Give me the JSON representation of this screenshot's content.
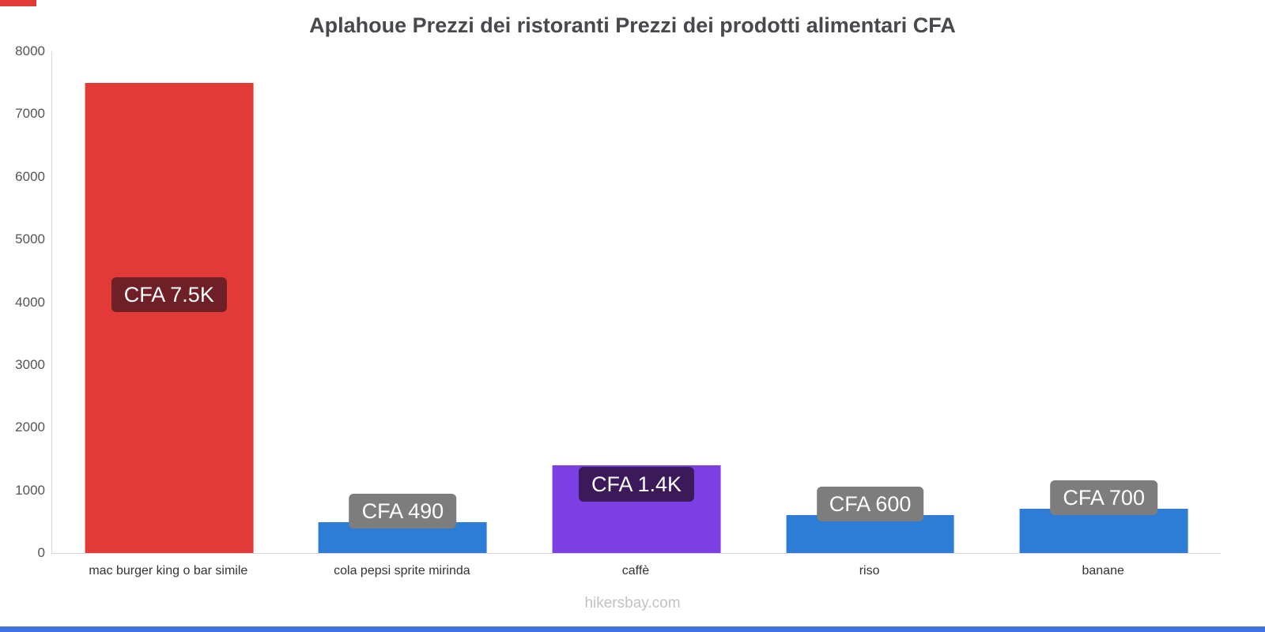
{
  "page": {
    "title": "Aplahoue Prezzi dei ristoranti Prezzi dei prodotti alimentari CFA",
    "footer": "hikersbay.com",
    "accent_top_color": "#e23939",
    "accent_bottom_color": "#4272e0"
  },
  "chart_data": {
    "type": "bar",
    "title": "Aplahoue Prezzi dei ristoranti Prezzi dei prodotti alimentari CFA",
    "categories": [
      "mac burger king o bar simile",
      "cola pepsi sprite mirinda",
      "caffè",
      "riso",
      "banane"
    ],
    "values": [
      7500,
      490,
      1400,
      600,
      700
    ],
    "value_labels": [
      "CFA 7.5K",
      "CFA 490",
      "CFA 1.4K",
      "CFA 600",
      "CFA 700"
    ],
    "bar_colors": [
      "#e23939",
      "#2d7cd6",
      "#7b3fe4",
      "#2d7cd6",
      "#2d7cd6"
    ],
    "label_bg_colors": [
      "#6f1f26",
      "#7d7d7d",
      "#3c1a5a",
      "#7d7d7d",
      "#7d7d7d"
    ],
    "label_anchors": [
      "center",
      "above",
      "inside-top",
      "above",
      "above"
    ],
    "xlabel": "",
    "ylabel": "",
    "ylim": [
      0,
      8000
    ],
    "yticks": [
      0,
      1000,
      2000,
      3000,
      4000,
      5000,
      6000,
      7000,
      8000
    ],
    "grid": false,
    "legend": false,
    "currency": "CFA"
  }
}
